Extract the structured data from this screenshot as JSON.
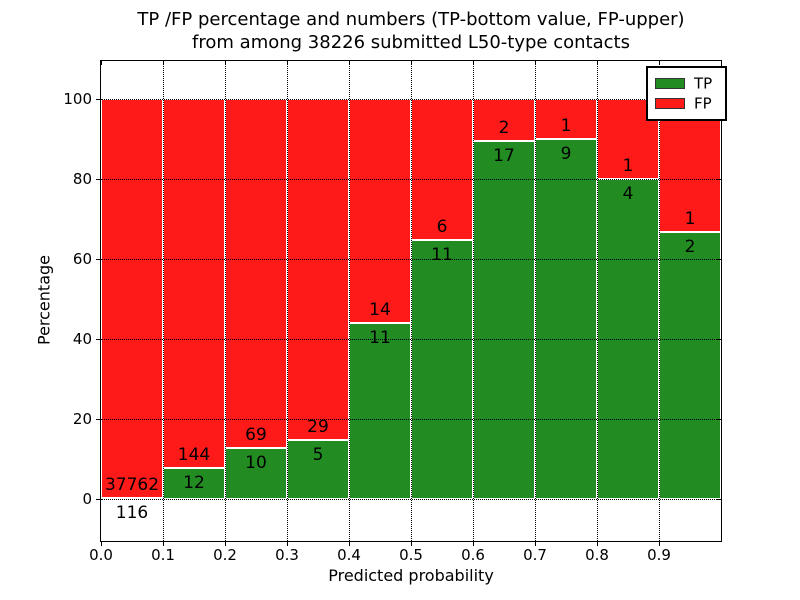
{
  "title": {
    "line1": "TP /FP percentage and numbers (TP-bottom value, FP-upper)",
    "line2": "from among 38226 submitted L50-type contacts"
  },
  "axes": {
    "xlabel": "Predicted probability",
    "ylabel": "Percentage"
  },
  "legend": {
    "position": "upper right",
    "items": [
      {
        "label": "TP",
        "color": "#228b22"
      },
      {
        "label": "FP",
        "color": "#ff1a1a"
      }
    ]
  },
  "chart_data": {
    "type": "bar",
    "stacked": true,
    "normalized_to_percent": true,
    "grid": true,
    "title": "TP /FP percentage and numbers (TP-bottom value, FP-upper) from among 38226 submitted L50-type contacts",
    "xlabel": "Predicted probability",
    "ylabel": "Percentage",
    "total_submitted": 38226,
    "xlim": [
      0,
      1
    ],
    "ylim": [
      -10.5,
      109.5
    ],
    "xtick_values": [
      0.0,
      0.1,
      0.2,
      0.3,
      0.4,
      0.5,
      0.6,
      0.7,
      0.8,
      0.9
    ],
    "xtick_labels": [
      "0.0",
      "0.1",
      "0.2",
      "0.3",
      "0.4",
      "0.5",
      "0.6",
      "0.7",
      "0.8",
      "0.9"
    ],
    "ytick_values": [
      0,
      20,
      40,
      60,
      80,
      100
    ],
    "ytick_labels": [
      "0",
      "20",
      "40",
      "60",
      "80",
      "100"
    ],
    "categories": [
      "0.0-0.1",
      "0.1-0.2",
      "0.2-0.3",
      "0.3-0.4",
      "0.4-0.5",
      "0.5-0.6",
      "0.6-0.7",
      "0.7-0.8",
      "0.8-0.9",
      "0.9-1.0"
    ],
    "series": [
      {
        "name": "TP",
        "color": "#228b22",
        "values": [
          116,
          12,
          10,
          5,
          11,
          11,
          17,
          9,
          4,
          2
        ]
      },
      {
        "name": "FP",
        "color": "#ff1a1a",
        "values": [
          37762,
          144,
          69,
          29,
          14,
          6,
          2,
          1,
          1,
          1
        ]
      }
    ],
    "tp_percent_of_bin": [
      0.31,
      7.69,
      12.66,
      14.71,
      44.0,
      64.71,
      89.47,
      90.0,
      80.0,
      66.67
    ]
  }
}
